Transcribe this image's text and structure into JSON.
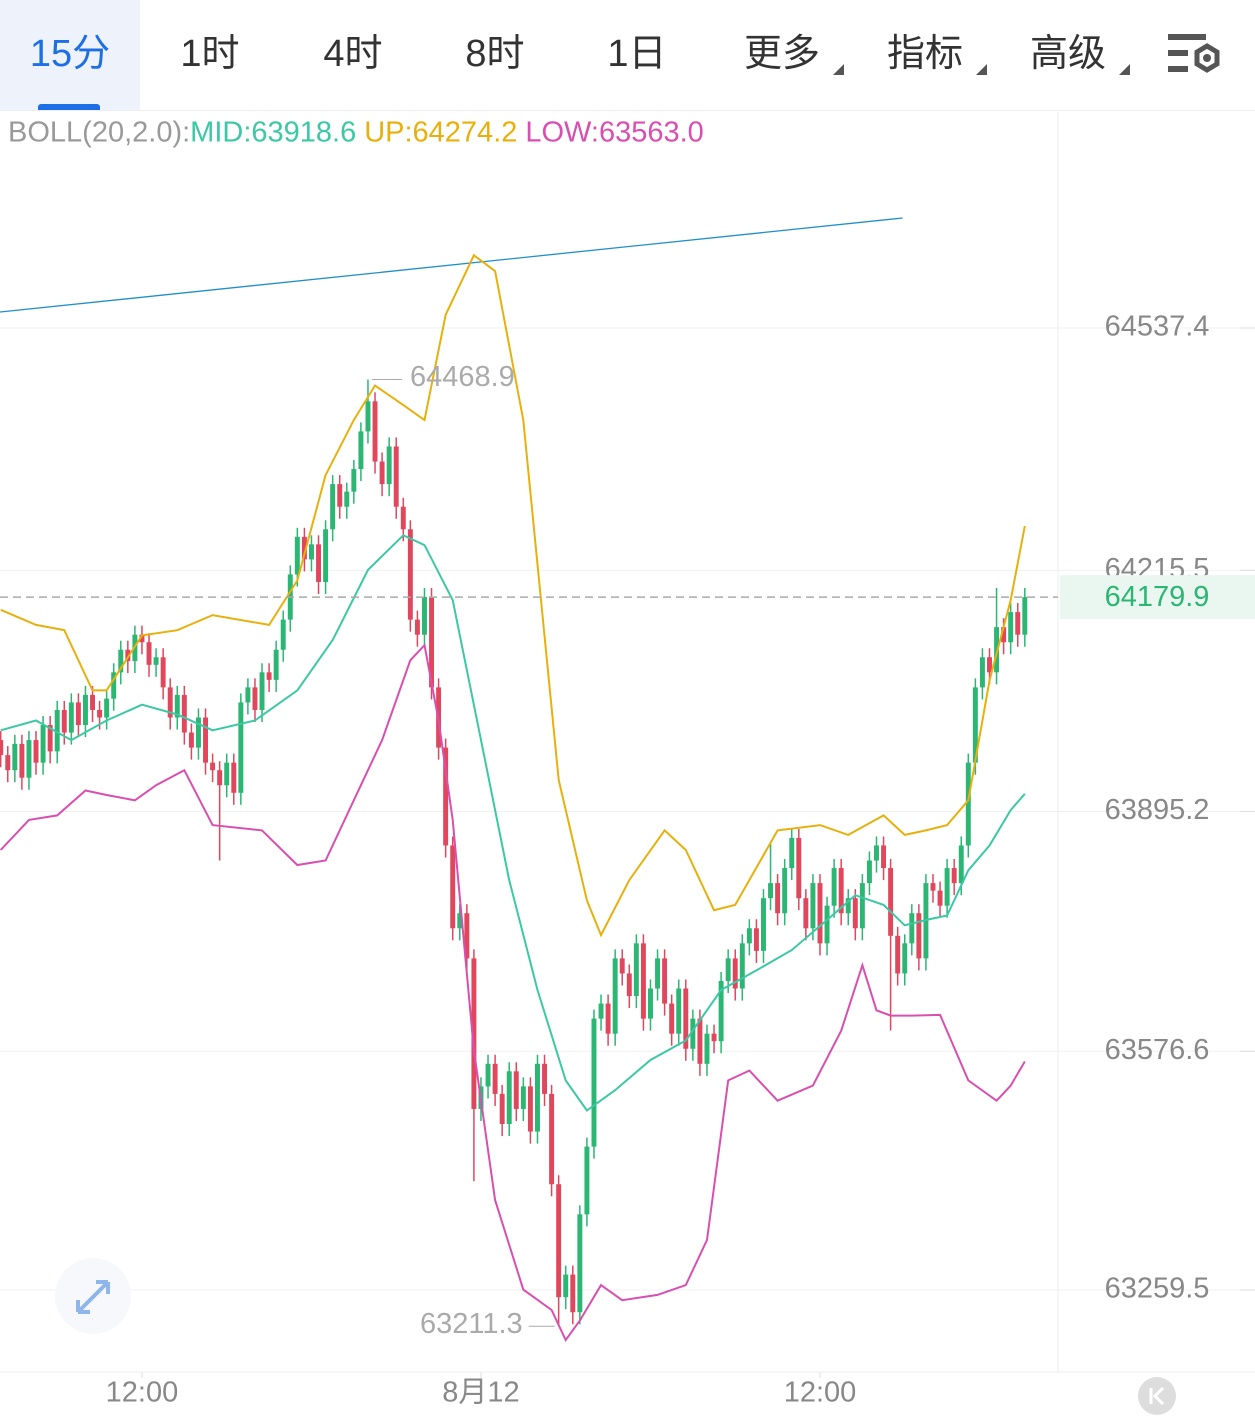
{
  "tabs": [
    "15分",
    "1时",
    "4时",
    "8时",
    "1日",
    "更多",
    "指标",
    "高级"
  ],
  "chart_data": {
    "type": "candlestick",
    "indicator": "BOLL(20,2.0):",
    "legend": [
      {
        "name": "MID:",
        "label": "63918.6"
      },
      {
        "name": "UP:",
        "label": "64274.2"
      },
      {
        "name": "LOW:",
        "label": "63563.0"
      }
    ],
    "up_color": "#2bb673",
    "down_color": "#e0475d",
    "xlim": [
      -0.1,
      149.7
    ],
    "ylim": [
      63150.6,
      64824.3
    ],
    "xticks": [
      {
        "value": 20,
        "label": "12:00"
      },
      {
        "value": 68,
        "label": "8月12"
      },
      {
        "value": 116,
        "label": "12:00"
      }
    ],
    "yticks": [
      64537.4,
      64215.5,
      63895.2,
      63576.6,
      63259.5
    ],
    "grid": true,
    "candles": [
      [
        63990,
        64002,
        63954,
        63970
      ],
      [
        63970,
        63982,
        63934,
        63950
      ],
      [
        63950,
        63997,
        63934,
        63985
      ],
      [
        63985,
        63997,
        63924,
        63940
      ],
      [
        63940,
        64002,
        63924,
        63990
      ],
      [
        63990,
        64002,
        63944,
        63960
      ],
      [
        63960,
        64022,
        63944,
        64010
      ],
      [
        64010,
        64022,
        63959,
        63975
      ],
      [
        63975,
        64042,
        63959,
        64030
      ],
      [
        64030,
        64042,
        63984,
        64000
      ],
      [
        64000,
        64052,
        63984,
        64040
      ],
      [
        64040,
        64052,
        63994,
        64010
      ],
      [
        64010,
        64062,
        63994,
        64050
      ],
      [
        64050,
        64062,
        64014,
        64030
      ],
      [
        64030,
        64042,
        64004,
        64020
      ],
      [
        64020,
        64057,
        64004,
        64045
      ],
      [
        64045,
        64092,
        64029,
        64080
      ],
      [
        64080,
        64122,
        64064,
        64110
      ],
      [
        64110,
        64122,
        64079,
        64095
      ],
      [
        64095,
        64142,
        64079,
        64130
      ],
      [
        64130,
        64142,
        64104,
        64120
      ],
      [
        64120,
        64132,
        64074,
        64090
      ],
      [
        64090,
        64112,
        64074,
        64100
      ],
      [
        64100,
        64112,
        64044,
        64060
      ],
      [
        64060,
        64072,
        64004,
        64020
      ],
      [
        64020,
        64062,
        64004,
        64050
      ],
      [
        64050,
        64062,
        63984,
        64000
      ],
      [
        64000,
        64012,
        63964,
        63980
      ],
      [
        63980,
        64032,
        63964,
        64020
      ],
      [
        64020,
        64032,
        63944,
        63960
      ],
      [
        63960,
        63972,
        63934,
        63950
      ],
      [
        63950,
        63962,
        63830,
        63930
      ],
      [
        63930,
        63972,
        63914,
        63960
      ],
      [
        63960,
        63972,
        63904,
        63920
      ],
      [
        63920,
        64052,
        63904,
        64040
      ],
      [
        64040,
        64072,
        64024,
        64060
      ],
      [
        64060,
        64072,
        64014,
        64030
      ],
      [
        64030,
        64092,
        64014,
        64080
      ],
      [
        64080,
        64092,
        64054,
        64070
      ],
      [
        64070,
        64122,
        64054,
        64110
      ],
      [
        64110,
        64162,
        64094,
        64150
      ],
      [
        64150,
        64222,
        64134,
        64210
      ],
      [
        64210,
        64272,
        64194,
        64260
      ],
      [
        64260,
        64272,
        64214,
        64230
      ],
      [
        64230,
        64262,
        64214,
        64250
      ],
      [
        64250,
        64262,
        64184,
        64200
      ],
      [
        64200,
        64282,
        64184,
        64270
      ],
      [
        64270,
        64342,
        64254,
        64330
      ],
      [
        64330,
        64342,
        64284,
        64300
      ],
      [
        64300,
        64332,
        64284,
        64320
      ],
      [
        64320,
        64362,
        64304,
        64350
      ],
      [
        64350,
        64412,
        64334,
        64400
      ],
      [
        64400,
        64468.9,
        64384,
        64440
      ],
      [
        64440,
        64452,
        64344,
        64360
      ],
      [
        64360,
        64372,
        64314,
        64330
      ],
      [
        64330,
        64392,
        64314,
        64380
      ],
      [
        64380,
        64392,
        64284,
        64300
      ],
      [
        64300,
        64312,
        64254,
        64270
      ],
      [
        64270,
        64282,
        64134,
        64150
      ],
      [
        64150,
        64162,
        64114,
        64130
      ],
      [
        64130,
        64192,
        64114,
        64180
      ],
      [
        64180,
        64192,
        64044,
        64060
      ],
      [
        64060,
        64072,
        63964,
        63980
      ],
      [
        63980,
        63992,
        63834,
        63850
      ],
      [
        63850,
        63862,
        63724,
        63740
      ],
      [
        63740,
        63772,
        63724,
        63760
      ],
      [
        63760,
        63772,
        63684,
        63700
      ],
      [
        63700,
        63712,
        63404,
        63500
      ],
      [
        63500,
        63542,
        63484,
        63530
      ],
      [
        63530,
        63572,
        63514,
        63560
      ],
      [
        63560,
        63572,
        63504,
        63520
      ],
      [
        63520,
        63532,
        63464,
        63480
      ],
      [
        63480,
        63562,
        63464,
        63550
      ],
      [
        63550,
        63562,
        63484,
        63500
      ],
      [
        63500,
        63542,
        63484,
        63530
      ],
      [
        63530,
        63542,
        63454,
        63470
      ],
      [
        63470,
        63572,
        63454,
        63560
      ],
      [
        63560,
        63572,
        63504,
        63520
      ],
      [
        63520,
        63532,
        63384,
        63400
      ],
      [
        63400,
        63412,
        63211.3,
        63250
      ],
      [
        63250,
        63292,
        63234,
        63280
      ],
      [
        63280,
        63292,
        63214,
        63230
      ],
      [
        63230,
        63372,
        63214,
        63360
      ],
      [
        63360,
        63462,
        63344,
        63450
      ],
      [
        63450,
        63632,
        63434,
        63620
      ],
      [
        63620,
        63652,
        63604,
        63640
      ],
      [
        63640,
        63652,
        63584,
        63600
      ],
      [
        63600,
        63712,
        63584,
        63700
      ],
      [
        63700,
        63712,
        63664,
        63680
      ],
      [
        63680,
        63692,
        63634,
        63650
      ],
      [
        63650,
        63732,
        63634,
        63720
      ],
      [
        63720,
        63732,
        63604,
        63620
      ],
      [
        63620,
        63672,
        63604,
        63660
      ],
      [
        63660,
        63712,
        63644,
        63700
      ],
      [
        63700,
        63712,
        63624,
        63640
      ],
      [
        63640,
        63652,
        63584,
        63600
      ],
      [
        63600,
        63672,
        63584,
        63660
      ],
      [
        63660,
        63672,
        63564,
        63580
      ],
      [
        63580,
        63632,
        63564,
        63620
      ],
      [
        63620,
        63632,
        63544,
        63560
      ],
      [
        63560,
        63612,
        63544,
        63600
      ],
      [
        63600,
        63612,
        63574,
        63590
      ],
      [
        63590,
        63682,
        63574,
        63670
      ],
      [
        63670,
        63712,
        63654,
        63700
      ],
      [
        63700,
        63712,
        63644,
        63660
      ],
      [
        63660,
        63732,
        63644,
        63720
      ],
      [
        63720,
        63752,
        63704,
        63740
      ],
      [
        63740,
        63752,
        63694,
        63710
      ],
      [
        63710,
        63792,
        63694,
        63780
      ],
      [
        63780,
        63852,
        63764,
        63800
      ],
      [
        63800,
        63812,
        63744,
        63760
      ],
      [
        63760,
        63832,
        63744,
        63820
      ],
      [
        63820,
        63872,
        63804,
        63860
      ],
      [
        63860,
        63872,
        63764,
        63780
      ],
      [
        63780,
        63792,
        63724,
        63740
      ],
      [
        63740,
        63812,
        63724,
        63800
      ],
      [
        63800,
        63812,
        63704,
        63720
      ],
      [
        63720,
        63782,
        63704,
        63770
      ],
      [
        63770,
        63832,
        63754,
        63820
      ],
      [
        63820,
        63832,
        63744,
        63760
      ],
      [
        63760,
        63792,
        63744,
        63780
      ],
      [
        63780,
        63792,
        63724,
        63740
      ],
      [
        63740,
        63812,
        63724,
        63800
      ],
      [
        63800,
        63842,
        63784,
        63830
      ],
      [
        63830,
        63862,
        63814,
        63850
      ],
      [
        63850,
        63862,
        63804,
        63820
      ],
      [
        63820,
        63832,
        63604,
        63730
      ],
      [
        63730,
        63742,
        63664,
        63680
      ],
      [
        63680,
        63732,
        63664,
        63720
      ],
      [
        63720,
        63772,
        63704,
        63760
      ],
      [
        63760,
        63772,
        63684,
        63700
      ],
      [
        63700,
        63812,
        63684,
        63800
      ],
      [
        63800,
        63812,
        63774,
        63790
      ],
      [
        63790,
        63802,
        63754,
        63770
      ],
      [
        63770,
        63832,
        63754,
        63820
      ],
      [
        63820,
        63832,
        63784,
        63800
      ],
      [
        63800,
        63862,
        63784,
        63850
      ],
      [
        63850,
        63972,
        63834,
        63960
      ],
      [
        63960,
        64072,
        63944,
        64060
      ],
      [
        64060,
        64112,
        64044,
        64100
      ],
      [
        64100,
        64112,
        64064,
        64080
      ],
      [
        64080,
        64192,
        64064,
        64140
      ],
      [
        64140,
        64152,
        64104,
        64120
      ],
      [
        64120,
        64172,
        64104,
        64160
      ],
      [
        64160,
        64172,
        64114,
        64130
      ],
      [
        64130,
        64192,
        64114,
        64179.9
      ]
    ],
    "series": [
      {
        "color": "#3cc8a5",
        "x": [
          0,
          5,
          10,
          15,
          20,
          25,
          30,
          36,
          42,
          47,
          52,
          57,
          60,
          64,
          68,
          72,
          76,
          80,
          83,
          87,
          92,
          97,
          102,
          107,
          112,
          117,
          121,
          125,
          128,
          131,
          134,
          137,
          140,
          143,
          145
        ],
        "values": [
          64003,
          64016,
          63990,
          64016,
          64037,
          64024,
          64003,
          64016,
          64056,
          64123,
          64216,
          64262,
          64249,
          64176,
          63990,
          63804,
          63658,
          63538,
          63498,
          63525,
          63565,
          63591,
          63658,
          63684,
          63711,
          63751,
          63784,
          63771,
          63744,
          63751,
          63757,
          63817,
          63850,
          63897,
          63918.6
        ]
      },
      {
        "color": "#e8b00c",
        "x": [
          0,
          5,
          9,
          13,
          15,
          20,
          25,
          30,
          38,
          42,
          46,
          50,
          53,
          57,
          60,
          63,
          67,
          70,
          74,
          79,
          83,
          85,
          89,
          94,
          97,
          101,
          104,
          110,
          116,
          120,
          125,
          128,
          131,
          134,
          137,
          140,
          143,
          145
        ],
        "values": [
          64163,
          64143,
          64136,
          64056,
          64056,
          64129,
          64136,
          64156,
          64143,
          64202,
          64342,
          64415,
          64461,
          64435,
          64415,
          64555,
          64634,
          64613,
          64415,
          63937,
          63777,
          63731,
          63804,
          63870,
          63844,
          63764,
          63771,
          63870,
          63877,
          63864,
          63890,
          63864,
          63870,
          63877,
          63910,
          64069,
          64176,
          64274.2
        ]
      },
      {
        "color": "#d94fb0",
        "x": [
          0,
          4,
          8,
          12,
          15,
          19,
          22,
          26,
          30,
          37,
          42,
          46,
          50,
          54,
          58,
          60,
          62,
          64,
          67,
          70,
          74,
          78,
          80,
          82,
          85,
          88,
          93,
          97,
          100,
          103,
          106,
          110,
          115,
          119,
          122,
          124,
          126,
          129,
          133,
          137,
          141,
          143,
          145
        ],
        "values": [
          63844,
          63884,
          63890,
          63923,
          63917,
          63910,
          63930,
          63950,
          63877,
          63870,
          63824,
          63830,
          63910,
          63990,
          64096,
          64116,
          64016,
          63884,
          63578,
          63379,
          63260,
          63233,
          63193,
          63219,
          63266,
          63246,
          63253,
          63266,
          63326,
          63538,
          63551,
          63511,
          63531,
          63604,
          63691,
          63631,
          63624,
          63624,
          63625,
          63538,
          63511,
          63531,
          63563
        ]
      }
    ],
    "trend_line": {
      "color": "#1f8fc9",
      "x": [
        -0.1,
        127.7
      ],
      "y": [
        64558.6,
        64683.5
      ]
    }
  }
}
